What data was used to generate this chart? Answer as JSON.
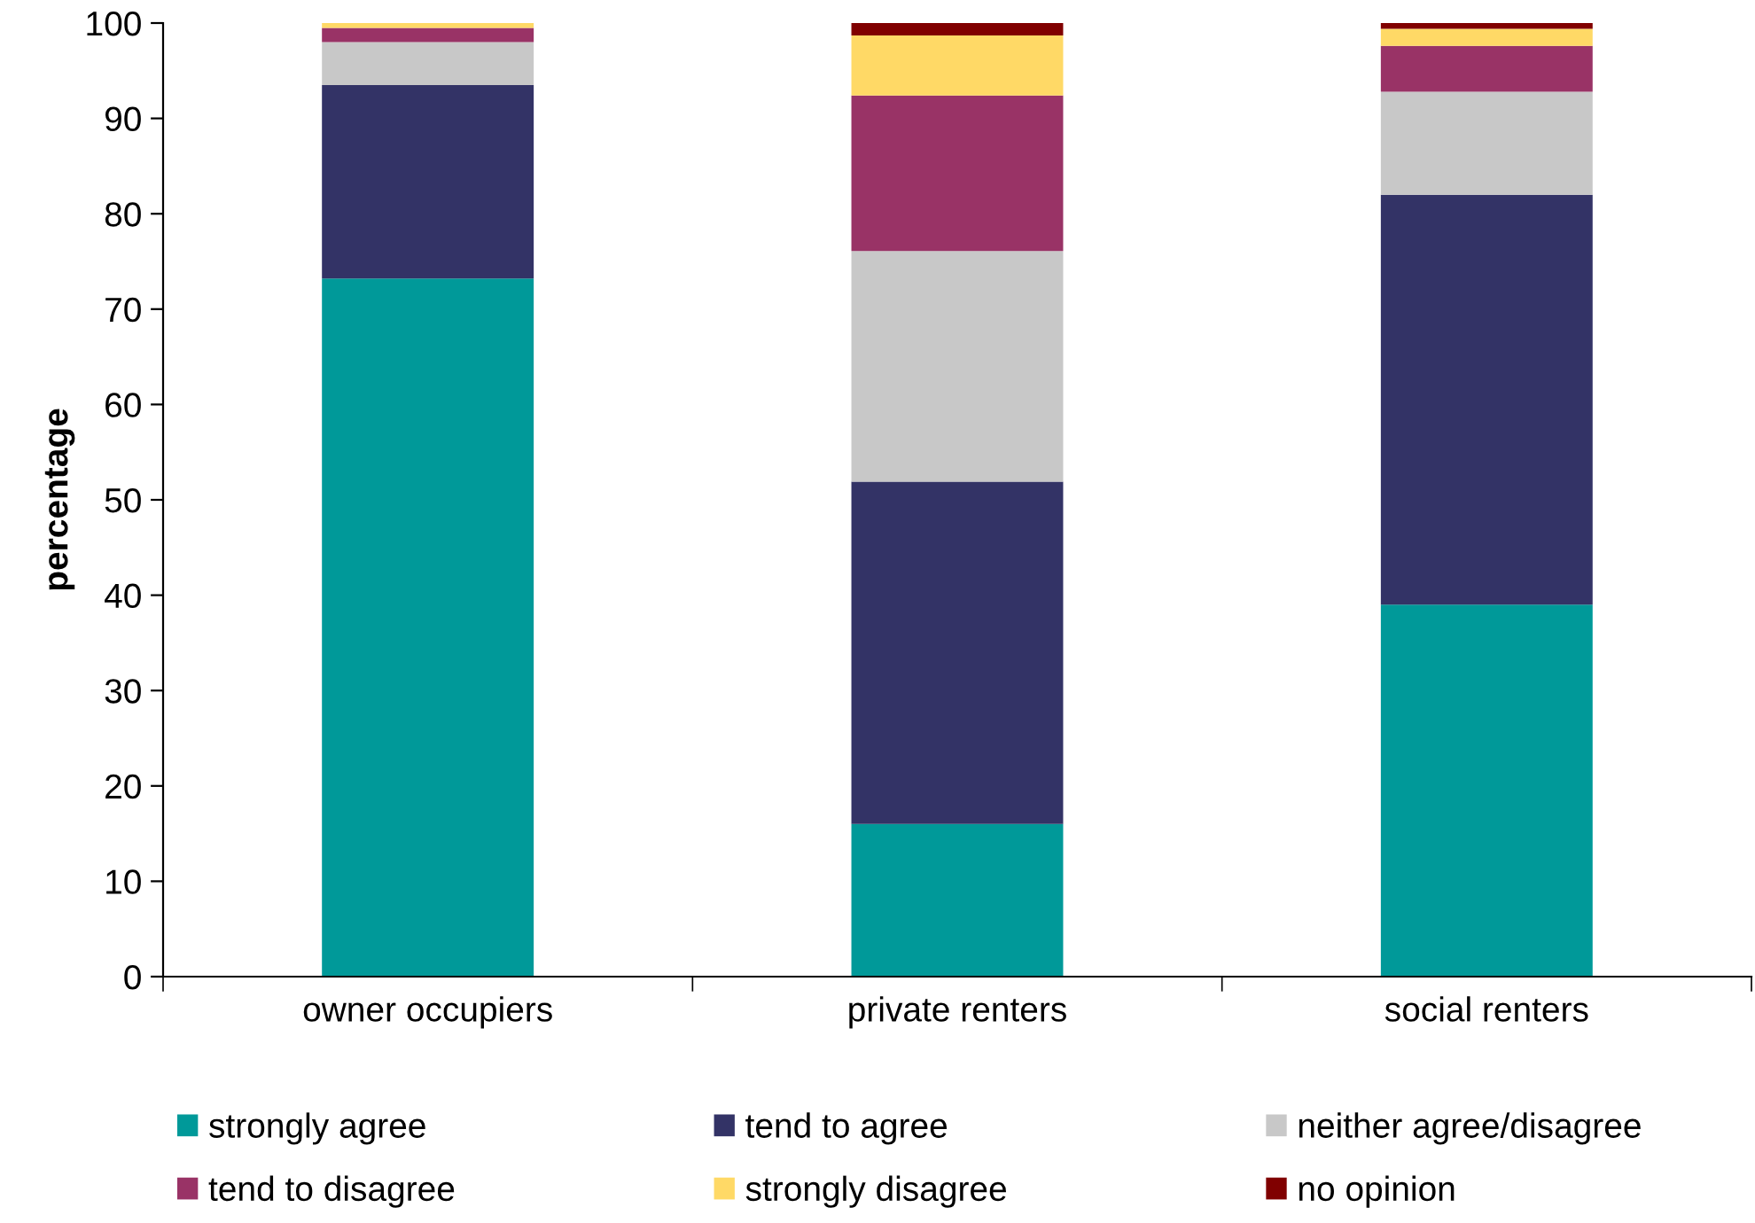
{
  "chart_data": {
    "type": "bar",
    "stacked": true,
    "ylabel": "percentage",
    "categories": [
      "owner occupiers",
      "private renters",
      "social renters"
    ],
    "series": [
      {
        "name": "strongly agree",
        "color": "#009999",
        "values": [
          73.2,
          16.0,
          39.0
        ]
      },
      {
        "name": "tend to agree",
        "color": "#333366",
        "values": [
          20.3,
          35.9,
          43.0
        ]
      },
      {
        "name": "neither agree/disagree",
        "color": "#c8c8c8",
        "values": [
          4.5,
          24.2,
          10.8
        ]
      },
      {
        "name": "tend to disagree",
        "color": "#993366",
        "values": [
          1.5,
          16.3,
          4.8
        ]
      },
      {
        "name": "strongly disagree",
        "color": "#ffd966",
        "values": [
          0.5,
          6.3,
          1.8
        ]
      },
      {
        "name": "no opinion",
        "color": "#800000",
        "values": [
          0,
          1.3,
          0.6
        ]
      }
    ],
    "ylim": [
      0,
      100
    ],
    "yticks": [
      0,
      10,
      20,
      30,
      40,
      50,
      60,
      70,
      80,
      90,
      100
    ],
    "grid": false,
    "legend": "bottom"
  }
}
